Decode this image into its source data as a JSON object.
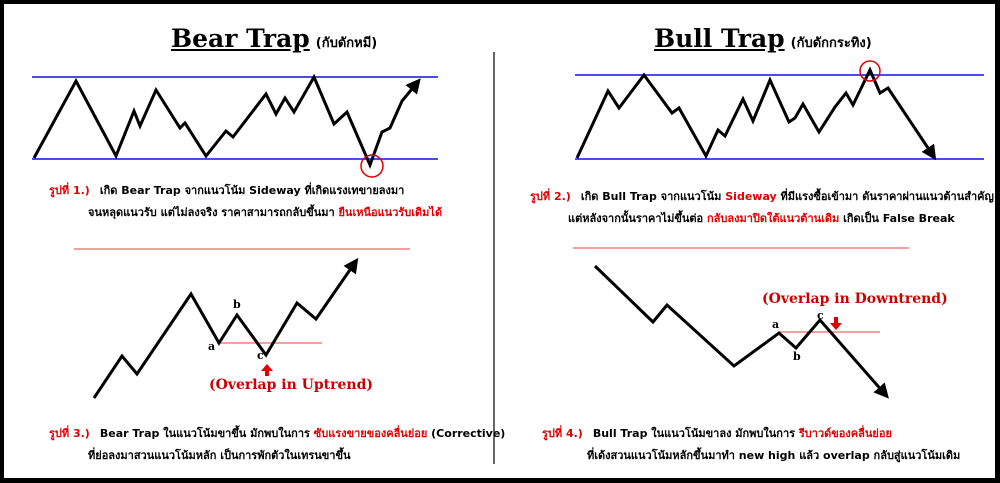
{
  "bear": {
    "title": "Bear Trap",
    "subtitle": "(กับดักหมี)",
    "fig1": {
      "num": "รูปที่ 1.)",
      "l1": "เกิด Bear Trap จากแนวโน้ม Sideway ที่เกิดแรงเทขายลงมา",
      "l2a": "จนหลุดแนวรับ แต่ไม่ลงจริง ราคาสามารถกลับขึ้นมา ",
      "l2b": "ยืนเหนือแนวรับเดิมได้"
    },
    "fig3": {
      "num": "รูปที่ 3.)",
      "l1a": "Bear Trap ในแนวโน้มขาขึ้น มักพบในการ ",
      "l1b": "ซับแรงขายของคลื่นย่อย",
      "l1c": " (Corrective)",
      "l2": "ที่ย่อลงมาสวนแนวโน้มหลัก เป็นการพักตัวในเทรนขาขึ้น"
    },
    "overlap": "(Overlap in Uptrend)",
    "labels": {
      "a": "a",
      "b": "b",
      "c": "c"
    }
  },
  "bull": {
    "title": "Bull Trap",
    "subtitle": "(กับดักกระทิง)",
    "fig2": {
      "num": "รูปที่ 2.)",
      "l1a": "เกิด Bull Trap จากแนวโน้ม ",
      "l1b": "Sideway",
      "l1c": " ที่มีแรงซื้อเข้ามา ดันราคาผ่านแนวต้านสำคัญ",
      "l2a": "แต่หลังจากนั้นราคาไม่ขึ้นต่อ ",
      "l2b": "กลับลงมาปิดใต้แนวต้านเดิม",
      "l2c": " เกิดเป็น False Break"
    },
    "fig4": {
      "num": "รูปที่ 4.)",
      "l1a": "Bull Trap ในแนวโน้มขาลง มักพบในการ ",
      "l1b": "รีบาวด์ของคลื่นย่อย",
      "l2": "ที่เด้งสวนแนวโน้มหลักขึ้นมาทำ new high แล้ว overlap กลับสู่แนวโน้มเดิม"
    },
    "overlap": "(Overlap in Downtrend)",
    "labels": {
      "a": "a",
      "b": "b",
      "c": "c"
    }
  },
  "colors": {
    "support": "#1010e0",
    "accent": "#e00000",
    "line": "#000000"
  },
  "icons": {
    "arrow_up": "arrow-up-icon",
    "arrow_down": "arrow-down-icon",
    "trap_circle": "circle-marker-icon"
  }
}
